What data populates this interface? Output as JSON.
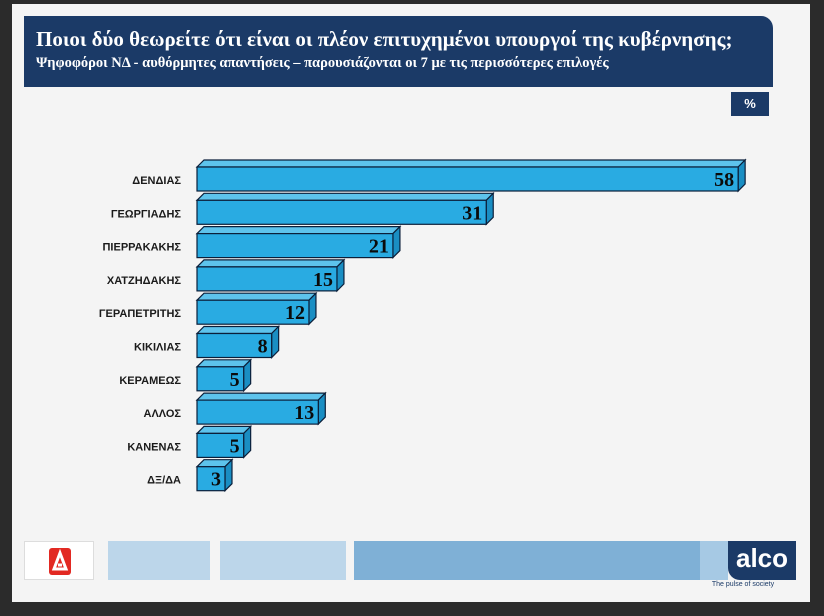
{
  "header": {
    "title": "Ποιοι δύο θεωρείτε ότι είναι οι πλέον επιτυχημένοι υπουργοί της κυβέρνησης;",
    "subtitle": "Ψηφοφόροι ΝΔ  - αυθόρμητες απαντήσεις – παρουσιάζονται οι 7 με τις περισσότερες επιλογές"
  },
  "unit_badge": "%",
  "chart_data": {
    "type": "bar",
    "orientation": "horizontal",
    "categories": [
      "ΔΕΝΔΙΑΣ",
      "ΓΕΩΡΓΙΑΔΗΣ",
      "ΠΙΕΡΡΑΚΑΚΗΣ",
      "ΧΑΤΖΗΔΑΚΗΣ",
      "ΓΕΡΑΠΕΤΡΙΤΗΣ",
      "ΚΙΚΙΛΙΑΣ",
      "ΚΕΡΑΜΕΩΣ",
      "ΑΛΛΟΣ",
      "ΚΑΝΕΝΑΣ",
      "ΔΞ/ΔΑ"
    ],
    "values": [
      58,
      31,
      21,
      15,
      12,
      8,
      5,
      13,
      5,
      3
    ],
    "unit": "%",
    "grid": false,
    "legend": "none",
    "colors": {
      "bar_front": "#29abe2",
      "bar_top": "#5dc3ec",
      "bar_side": "#1a8ec3",
      "outline": "#0b1f3a"
    }
  },
  "footer": {
    "brand": "alco",
    "tagline": "The pulse of society",
    "news_logo": "alpha-news-logo",
    "strip_colors": [
      "#bcd6ea",
      "#bcd6ea",
      "#7fb0d6",
      "#a6c9e4"
    ]
  }
}
